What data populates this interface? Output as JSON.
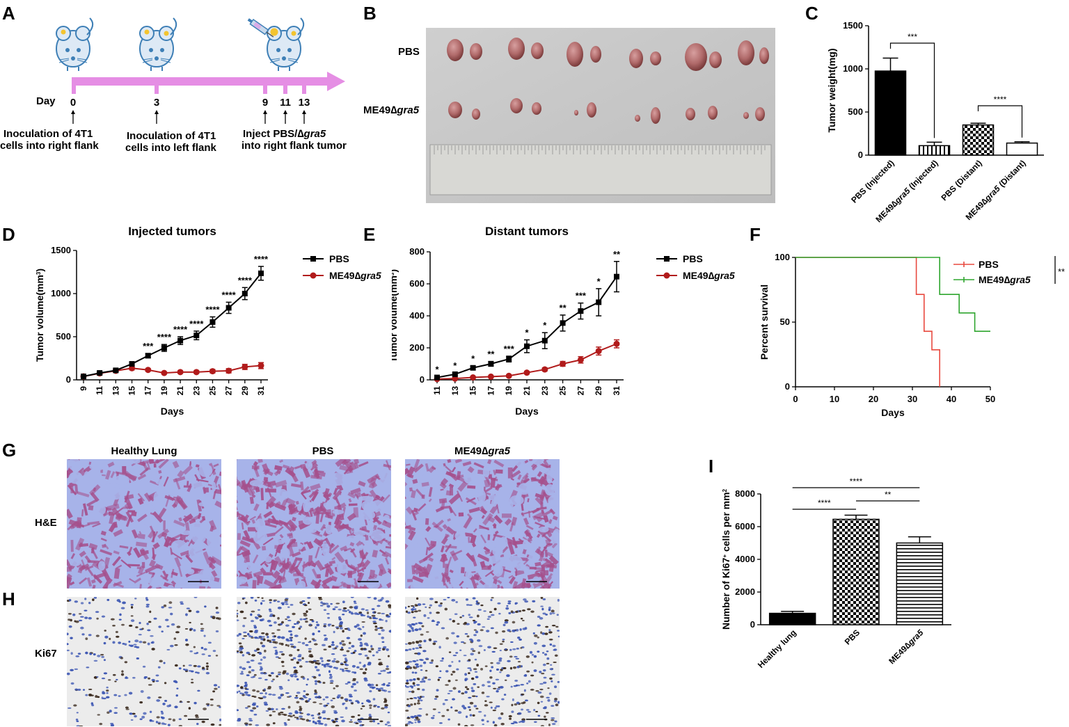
{
  "panels": {
    "A": "A",
    "B": "B",
    "C": "C",
    "D": "D",
    "E": "E",
    "F": "F",
    "G": "G",
    "H": "H",
    "I": "I"
  },
  "timeline": {
    "day_label": "Day",
    "days": [
      "0",
      "3",
      "9",
      "11",
      "13"
    ],
    "step0": [
      "Inoculation of 4T1",
      "cells into right flank"
    ],
    "step1": [
      "Inoculation of 4T1",
      "cells into left flank"
    ],
    "step2_prefix": "Inject PBS/",
    "step2_gene": "gra5",
    "step2_line2": "into right flank tumor",
    "colors": {
      "arrow": "#e58ee4",
      "mouse": "#3e7fb6",
      "mouse_fill": "#dde9f5",
      "tumor": "#f3c430"
    }
  },
  "photo_B": {
    "row1": "PBS",
    "row2_prefix": "ME49",
    "row2_gene": "gra5"
  },
  "histology": {
    "col_headers": [
      "Healthy Lung",
      "PBS"
    ],
    "col3_prefix": "ME49",
    "col3_gene": "gra5",
    "row_labels": [
      "H&E",
      "Ki67"
    ],
    "colors": {
      "he_bg": "#a7b3e9",
      "he_tissue": "#a5508c",
      "ki_bg": "#ececec",
      "ki_cell": "#3c56b3",
      "ki_dark": "#3a2a1e"
    }
  },
  "chart_data": [
    {
      "id": "C",
      "type": "bar",
      "ylabel": "Tumor weight(mg)",
      "ylim": [
        0,
        1500
      ],
      "yticks": [
        0,
        500,
        1000,
        1500
      ],
      "categories": [
        "PBS (Injected)",
        "ME49∆gra5 (Injected)",
        "PBS (Distant)",
        "ME49∆gra5 (Distant)"
      ],
      "category_labels": [
        {
          "prefix": "PBS (Injected)",
          "gene": "",
          "suffix": ""
        },
        {
          "prefix": "ME49∆",
          "gene": "gra5",
          "suffix": " (Injected)"
        },
        {
          "prefix": "PBS (Distant)",
          "gene": "",
          "suffix": ""
        },
        {
          "prefix": "ME49∆",
          "gene": "gra5",
          "suffix": " (Distant)"
        }
      ],
      "values": [
        975,
        110,
        350,
        140
      ],
      "errors": [
        150,
        40,
        20,
        15
      ],
      "patterns": [
        "solid",
        "vstripes",
        "checker",
        "open"
      ],
      "significance": [
        {
          "from": 0,
          "to": 1,
          "label": "***"
        },
        {
          "from": 2,
          "to": 3,
          "label": "****"
        }
      ]
    },
    {
      "id": "D",
      "type": "line",
      "title": "Injected tumors",
      "xlabel": "Days",
      "ylabel": "Tumor volume(mm",
      "ylabel_sup": "3",
      "ylabel_close": ")",
      "x": [
        9,
        11,
        13,
        15,
        17,
        19,
        21,
        23,
        25,
        27,
        29,
        31
      ],
      "ylim": [
        0,
        1500
      ],
      "yticks": [
        0,
        500,
        1000,
        1500
      ],
      "series": [
        {
          "name": "PBS",
          "color": "#000000",
          "marker": "square",
          "values": [
            40,
            80,
            110,
            185,
            280,
            370,
            455,
            515,
            670,
            835,
            1000,
            1235
          ],
          "errors": [
            10,
            15,
            15,
            20,
            25,
            40,
            45,
            50,
            60,
            65,
            70,
            80
          ]
        },
        {
          "name": "ME49∆gra5",
          "name_prefix": "ME49∆",
          "name_gene": "gra5",
          "color": "#b11b1b",
          "marker": "circle",
          "values": [
            40,
            75,
            105,
            135,
            115,
            80,
            90,
            90,
            100,
            105,
            150,
            165
          ],
          "errors": [
            10,
            15,
            15,
            20,
            15,
            10,
            15,
            15,
            20,
            25,
            30,
            35
          ]
        }
      ],
      "annotations": [
        {
          "x": 17,
          "label": "***"
        },
        {
          "x": 19,
          "label": "****"
        },
        {
          "x": 21,
          "label": "****"
        },
        {
          "x": 23,
          "label": "****"
        },
        {
          "x": 25,
          "label": "****"
        },
        {
          "x": 27,
          "label": "****"
        },
        {
          "x": 29,
          "label": "****"
        },
        {
          "x": 31,
          "label": "****"
        }
      ],
      "legend_position": "right"
    },
    {
      "id": "E",
      "type": "line",
      "title": "Distant tumors",
      "xlabel": "Days",
      "ylabel": "Tumor volume(mm",
      "ylabel_sup": "3",
      "ylabel_close": ")",
      "x": [
        11,
        13,
        15,
        17,
        19,
        21,
        23,
        25,
        27,
        29,
        31
      ],
      "ylim": [
        0,
        800
      ],
      "yticks": [
        0,
        200,
        400,
        600,
        800
      ],
      "series": [
        {
          "name": "PBS",
          "color": "#000000",
          "marker": "square",
          "values": [
            15,
            35,
            75,
            100,
            130,
            210,
            245,
            355,
            430,
            485,
            645
          ],
          "errors": [
            5,
            8,
            12,
            15,
            18,
            40,
            50,
            50,
            50,
            85,
            95
          ]
        },
        {
          "name": "ME49∆gra5",
          "name_prefix": "ME49∆",
          "name_gene": "gra5",
          "color": "#b11b1b",
          "marker": "circle",
          "values": [
            5,
            8,
            15,
            20,
            25,
            45,
            65,
            100,
            125,
            180,
            225
          ],
          "errors": [
            3,
            4,
            5,
            5,
            5,
            8,
            10,
            15,
            20,
            25,
            25
          ]
        }
      ],
      "annotations": [
        {
          "x": 11,
          "label": "*"
        },
        {
          "x": 13,
          "label": "*"
        },
        {
          "x": 15,
          "label": "*"
        },
        {
          "x": 17,
          "label": "**"
        },
        {
          "x": 19,
          "label": "***"
        },
        {
          "x": 21,
          "label": "*"
        },
        {
          "x": 23,
          "label": "*"
        },
        {
          "x": 25,
          "label": "**"
        },
        {
          "x": 27,
          "label": "***"
        },
        {
          "x": 29,
          "label": "*"
        },
        {
          "x": 31,
          "label": "**"
        }
      ],
      "legend_position": "right"
    },
    {
      "id": "F",
      "type": "line",
      "subtype": "survival-step",
      "xlabel": "Days",
      "ylabel": "Percent survival",
      "xlim": [
        0,
        50
      ],
      "ylim": [
        0,
        100
      ],
      "xticks": [
        0,
        10,
        20,
        30,
        40,
        50
      ],
      "yticks": [
        0,
        50,
        100
      ],
      "series": [
        {
          "name": "PBS",
          "color": "#e8493f",
          "steps": [
            [
              0,
              100
            ],
            [
              31,
              100
            ],
            [
              31,
              71.4
            ],
            [
              33,
              71.4
            ],
            [
              33,
              42.9
            ],
            [
              35,
              42.9
            ],
            [
              35,
              28.6
            ],
            [
              37,
              28.6
            ],
            [
              37,
              0
            ]
          ]
        },
        {
          "name": "ME49∆gra5",
          "name_prefix": "ME49∆",
          "name_gene": "gra5",
          "color": "#2ea52e",
          "steps": [
            [
              0,
              100
            ],
            [
              37,
              100
            ],
            [
              37,
              71.4
            ],
            [
              42,
              71.4
            ],
            [
              42,
              57.1
            ],
            [
              46,
              57.1
            ],
            [
              46,
              42.9
            ],
            [
              50,
              42.9
            ]
          ]
        }
      ],
      "significance": "**",
      "legend_position": "top-right"
    },
    {
      "id": "I",
      "type": "bar",
      "ylabel": "Number of Ki67",
      "ylabel_sup": "+",
      "ylabel_mid": " cells per mm",
      "ylabel_sup2": "2",
      "ylim": [
        0,
        8000
      ],
      "yticks": [
        0,
        2000,
        4000,
        6000,
        8000
      ],
      "categories": [
        "Healthy lung",
        "PBS",
        "ME49∆gra5"
      ],
      "category_labels": [
        {
          "prefix": "Healthy lung",
          "gene": "",
          "suffix": ""
        },
        {
          "prefix": "PBS",
          "gene": "",
          "suffix": ""
        },
        {
          "prefix": "ME49∆",
          "gene": "gra5",
          "suffix": ""
        }
      ],
      "values": [
        700,
        6450,
        5000
      ],
      "errors": [
        120,
        250,
        380
      ],
      "patterns": [
        "solid",
        "checker",
        "hstripes"
      ],
      "significance": [
        {
          "from": 0,
          "to": 2,
          "label": "****"
        },
        {
          "from": 0,
          "to": 1,
          "label": "****"
        },
        {
          "from": 1,
          "to": 2,
          "label": "**"
        }
      ]
    }
  ]
}
